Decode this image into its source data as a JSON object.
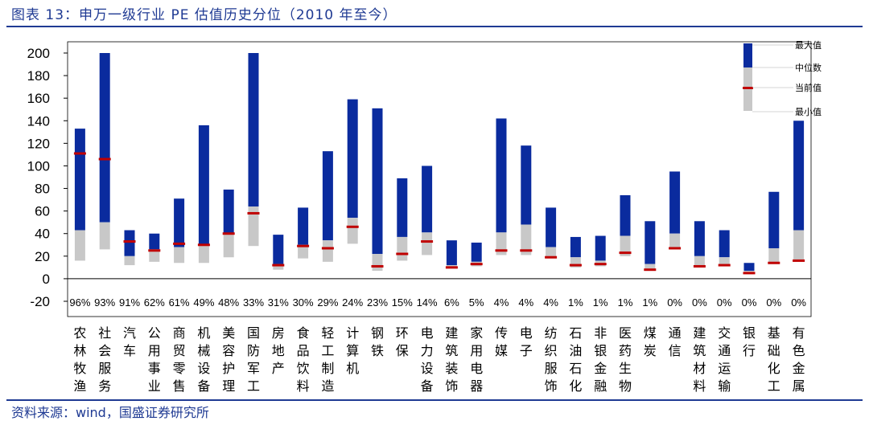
{
  "title": "图表 13：申万一级行业 PE 估值历史分位（2010 年至今）",
  "source": "资料来源：wind，国盛证券研究所",
  "chart_data": {
    "type": "bar",
    "title": "申万一级行业 PE 估值历史分位（2010 年至今）",
    "ylim": [
      -20,
      200
    ],
    "yticks": [
      -20,
      0,
      20,
      40,
      60,
      80,
      100,
      120,
      140,
      160,
      180,
      200
    ],
    "legend": [
      "最大值",
      "中位数",
      "当前值",
      "最小值"
    ],
    "legend_position": "top-right",
    "colors": {
      "upper": "#0a2b9e",
      "lower": "#c8c8c8",
      "current": "#c00000"
    },
    "categories": [
      "农林牧渔",
      "社会服务",
      "汽车",
      "公用事业",
      "商贸零售",
      "机械设备",
      "美容护理",
      "国防军工",
      "房地产",
      "食品饮料",
      "轻工制造",
      "计算机",
      "钢铁",
      "环保",
      "电力设备",
      "建筑装饰",
      "家用电器",
      "传媒",
      "电子",
      "纺织服饰",
      "石油石化",
      "非银金融",
      "医药生物",
      "煤炭",
      "通信",
      "建筑材料",
      "交通运输",
      "银行",
      "基础化工",
      "有色金属"
    ],
    "percentiles": [
      "96%",
      "93%",
      "91%",
      "62%",
      "61%",
      "49%",
      "48%",
      "33%",
      "31%",
      "30%",
      "29%",
      "24%",
      "23%",
      "15%",
      "14%",
      "6%",
      "5%",
      "4%",
      "4%",
      "4%",
      "1%",
      "1%",
      "1%",
      "1%",
      "0%",
      "0%",
      "0%",
      "0%",
      "0%",
      "0%"
    ],
    "max": [
      133,
      200,
      43,
      40,
      71,
      136,
      79,
      200,
      39,
      63,
      113,
      159,
      151,
      89,
      100,
      34,
      32,
      142,
      118,
      63,
      37,
      38,
      74,
      51,
      95,
      51,
      43,
      14,
      77,
      140
    ],
    "median": [
      43,
      50,
      20,
      26,
      28,
      30,
      40,
      64,
      13,
      30,
      34,
      54,
      22,
      37,
      41,
      12,
      15,
      41,
      48,
      28,
      19,
      16,
      38,
      13,
      40,
      20,
      19,
      7,
      27,
      43
    ],
    "current": [
      111,
      106,
      33,
      25,
      31,
      30,
      40,
      58,
      12,
      29,
      27,
      46,
      11,
      22,
      33,
      10,
      13,
      25,
      25,
      19,
      12,
      13,
      23,
      8,
      27,
      11,
      12,
      5,
      14,
      16
    ],
    "min": [
      16,
      26,
      12,
      15,
      14,
      14,
      19,
      29,
      8,
      18,
      15,
      31,
      7,
      16,
      21,
      9,
      11,
      21,
      21,
      18,
      10,
      11,
      20,
      7,
      26,
      10,
      11,
      4,
      13,
      16
    ]
  }
}
